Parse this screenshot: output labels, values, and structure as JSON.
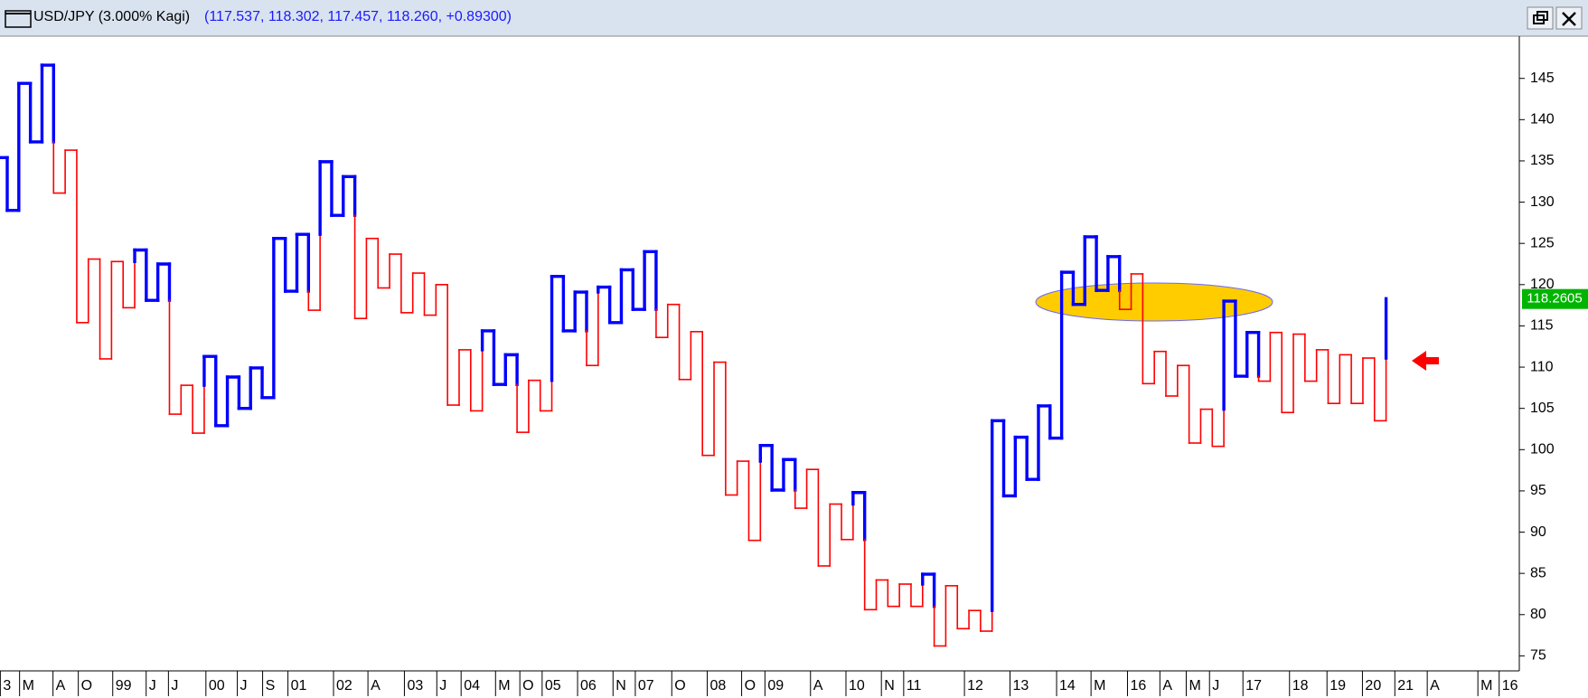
{
  "header": {
    "title": "USD/JPY (3.000% Kagi)",
    "quote": "(117.537, 118.302, 117.457, 118.260, +0.89300)"
  },
  "chart_data": {
    "type": "kagi",
    "up_color": "#0000ff",
    "down_color": "#ff0000",
    "values": [
      135.4,
      129,
      144.4,
      137.3,
      146.6,
      131.1,
      136.3,
      115.4,
      123.1,
      111,
      122.8,
      117.2,
      124.2,
      118.1,
      122.5,
      104.3,
      107.8,
      102,
      111.3,
      102.9,
      108.8,
      105,
      109.9,
      106.3,
      125.6,
      119.2,
      126.1,
      116.9,
      134.9,
      128.4,
      133.1,
      115.9,
      125.6,
      119.6,
      123.7,
      116.6,
      121.4,
      116.3,
      120,
      105.4,
      112.1,
      104.7,
      114.4,
      107.9,
      111.5,
      102.1,
      108.4,
      104.7,
      121,
      114.4,
      119.1,
      110.2,
      119.7,
      115.4,
      121.8,
      117,
      124,
      113.6,
      117.6,
      108.5,
      114.3,
      99.3,
      110.6,
      94.5,
      98.6,
      89,
      100.5,
      95.1,
      98.8,
      92.9,
      97.6,
      85.9,
      93.4,
      89.1,
      94.8,
      80.6,
      84.2,
      81,
      83.7,
      81,
      84.9,
      76.2,
      83.5,
      78.3,
      80.5,
      78,
      103.5,
      94.4,
      101.5,
      96.4,
      105.3,
      101.4,
      121.5,
      117.6,
      125.8,
      119.3,
      123.4,
      117,
      121.3,
      108,
      111.9,
      106.5,
      110.2,
      100.8,
      104.9,
      100.4,
      118,
      108.9,
      114.2,
      108.3,
      114.2,
      104.5,
      114,
      108.3,
      112.1,
      105.6,
      111.5,
      105.6,
      111.1,
      103.5,
      118.3
    ],
    "ylim": [
      73.4,
      149.9
    ],
    "yticks": [
      75,
      80,
      85,
      90,
      95,
      100,
      105,
      110,
      115,
      120,
      125,
      130,
      135,
      140,
      145
    ],
    "last_price": {
      "value": 118.2605,
      "label": "118.2605"
    },
    "x_labels": [
      "3",
      "M",
      "A",
      "O",
      "99",
      "J",
      "J",
      "00",
      "J",
      "S",
      "01",
      "02",
      "A",
      "03",
      "J",
      "04",
      "M",
      "O",
      "05",
      "06",
      "N",
      "07",
      "O",
      "08",
      "O",
      "09",
      "A",
      "10",
      "N",
      "11",
      "12",
      "13",
      "14",
      "M",
      "16",
      "A",
      "M",
      "J",
      "17",
      "18",
      "19",
      "20",
      "21",
      "A",
      "M",
      "16"
    ]
  }
}
